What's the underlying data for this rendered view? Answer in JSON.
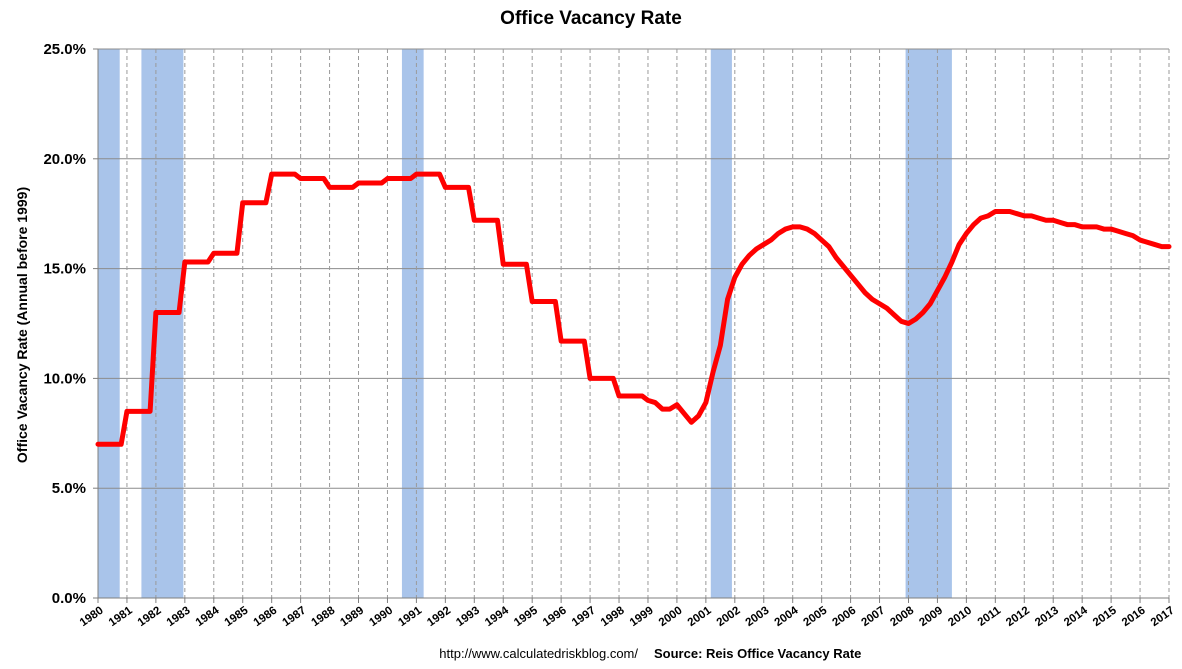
{
  "chart_data": {
    "type": "line",
    "title": "Office Vacancy Rate",
    "ylabel": "Office Vacancy Rate (Annual before 1999)",
    "xlabel": "",
    "ylim": [
      0,
      25
    ],
    "xlim": [
      1980,
      2017
    ],
    "y_ticks": [
      "0.0%",
      "5.0%",
      "10.0%",
      "15.0%",
      "20.0%",
      "25.0%"
    ],
    "x_ticks": [
      "1980",
      "1981",
      "1982",
      "1983",
      "1984",
      "1985",
      "1986",
      "1987",
      "1988",
      "1989",
      "1990",
      "1991",
      "1992",
      "1993",
      "1994",
      "1995",
      "1996",
      "1997",
      "1998",
      "1999",
      "2000",
      "2001",
      "2002",
      "2003",
      "2004",
      "2005",
      "2006",
      "2007",
      "2008",
      "2009",
      "2010",
      "2011",
      "2012",
      "2013",
      "2014",
      "2015",
      "2016",
      "2017"
    ],
    "grid": {
      "horizontal": true,
      "vertical_dashed": true
    },
    "line_color": "#ff0000",
    "recession_color": "#a9c4ea",
    "recessions": [
      [
        1980.0,
        1980.75
      ],
      [
        1981.5,
        1982.95
      ],
      [
        1990.5,
        1991.25
      ],
      [
        2001.17,
        2001.9
      ],
      [
        2007.9,
        2009.5
      ]
    ],
    "series": [
      {
        "values": [
          [
            1980.0,
            7.0
          ],
          [
            1980.8,
            7.0
          ],
          [
            1981.0,
            8.5
          ],
          [
            1981.8,
            8.5
          ],
          [
            1982.0,
            13.0
          ],
          [
            1982.8,
            13.0
          ],
          [
            1983.0,
            15.3
          ],
          [
            1983.8,
            15.3
          ],
          [
            1984.0,
            15.7
          ],
          [
            1984.8,
            15.7
          ],
          [
            1985.0,
            18.0
          ],
          [
            1985.8,
            18.0
          ],
          [
            1986.0,
            19.3
          ],
          [
            1986.8,
            19.3
          ],
          [
            1987.0,
            19.1
          ],
          [
            1987.8,
            19.1
          ],
          [
            1988.0,
            18.7
          ],
          [
            1988.8,
            18.7
          ],
          [
            1989.0,
            18.9
          ],
          [
            1989.8,
            18.9
          ],
          [
            1990.0,
            19.1
          ],
          [
            1990.8,
            19.1
          ],
          [
            1991.0,
            19.3
          ],
          [
            1991.8,
            19.3
          ],
          [
            1992.0,
            18.7
          ],
          [
            1992.8,
            18.7
          ],
          [
            1993.0,
            17.2
          ],
          [
            1993.8,
            17.2
          ],
          [
            1994.0,
            15.2
          ],
          [
            1994.8,
            15.2
          ],
          [
            1995.0,
            13.5
          ],
          [
            1995.8,
            13.5
          ],
          [
            1996.0,
            11.7
          ],
          [
            1996.8,
            11.7
          ],
          [
            1997.0,
            10.0
          ],
          [
            1997.8,
            10.0
          ],
          [
            1998.0,
            9.2
          ],
          [
            1998.8,
            9.2
          ],
          [
            1999.0,
            9.0
          ],
          [
            1999.25,
            8.9
          ],
          [
            1999.5,
            8.6
          ],
          [
            1999.75,
            8.6
          ],
          [
            2000.0,
            8.8
          ],
          [
            2000.25,
            8.4
          ],
          [
            2000.5,
            8.0
          ],
          [
            2000.75,
            8.3
          ],
          [
            2001.0,
            8.9
          ],
          [
            2001.25,
            10.3
          ],
          [
            2001.5,
            11.5
          ],
          [
            2001.75,
            13.6
          ],
          [
            2002.0,
            14.6
          ],
          [
            2002.25,
            15.2
          ],
          [
            2002.5,
            15.6
          ],
          [
            2002.75,
            15.9
          ],
          [
            2003.0,
            16.1
          ],
          [
            2003.25,
            16.3
          ],
          [
            2003.5,
            16.6
          ],
          [
            2003.75,
            16.8
          ],
          [
            2004.0,
            16.9
          ],
          [
            2004.25,
            16.9
          ],
          [
            2004.5,
            16.8
          ],
          [
            2004.75,
            16.6
          ],
          [
            2005.0,
            16.3
          ],
          [
            2005.25,
            16.0
          ],
          [
            2005.5,
            15.5
          ],
          [
            2005.75,
            15.1
          ],
          [
            2006.0,
            14.7
          ],
          [
            2006.25,
            14.3
          ],
          [
            2006.5,
            13.9
          ],
          [
            2006.75,
            13.6
          ],
          [
            2007.0,
            13.4
          ],
          [
            2007.25,
            13.2
          ],
          [
            2007.5,
            12.9
          ],
          [
            2007.75,
            12.6
          ],
          [
            2008.0,
            12.5
          ],
          [
            2008.25,
            12.7
          ],
          [
            2008.5,
            13.0
          ],
          [
            2008.75,
            13.4
          ],
          [
            2009.0,
            14.0
          ],
          [
            2009.25,
            14.6
          ],
          [
            2009.5,
            15.3
          ],
          [
            2009.75,
            16.1
          ],
          [
            2010.0,
            16.6
          ],
          [
            2010.25,
            17.0
          ],
          [
            2010.5,
            17.3
          ],
          [
            2010.75,
            17.4
          ],
          [
            2011.0,
            17.6
          ],
          [
            2011.25,
            17.6
          ],
          [
            2011.5,
            17.6
          ],
          [
            2011.75,
            17.5
          ],
          [
            2012.0,
            17.4
          ],
          [
            2012.25,
            17.4
          ],
          [
            2012.5,
            17.3
          ],
          [
            2012.75,
            17.2
          ],
          [
            2013.0,
            17.2
          ],
          [
            2013.25,
            17.1
          ],
          [
            2013.5,
            17.0
          ],
          [
            2013.75,
            17.0
          ],
          [
            2014.0,
            16.9
          ],
          [
            2014.25,
            16.9
          ],
          [
            2014.5,
            16.9
          ],
          [
            2014.75,
            16.8
          ],
          [
            2015.0,
            16.8
          ],
          [
            2015.25,
            16.7
          ],
          [
            2015.5,
            16.6
          ],
          [
            2015.75,
            16.5
          ],
          [
            2016.0,
            16.3
          ],
          [
            2016.25,
            16.2
          ],
          [
            2016.5,
            16.1
          ],
          [
            2016.75,
            16.0
          ],
          [
            2017.0,
            16.0
          ]
        ]
      }
    ],
    "footer": {
      "url": "http://www.calculatedriskblog.com/",
      "source": "Source: Reis Office Vacancy Rate"
    }
  }
}
